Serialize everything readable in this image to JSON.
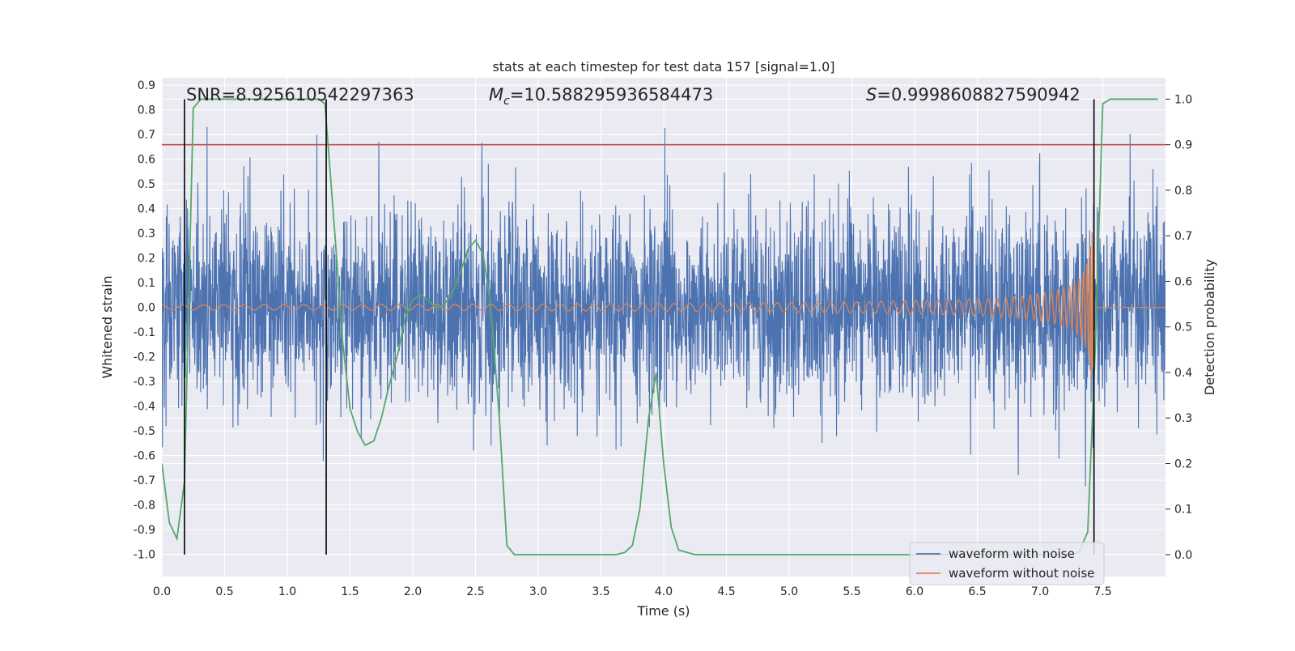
{
  "chart_data": {
    "type": "line",
    "title": "stats at each timestep for test data 157 [signal=1.0]",
    "xlabel": "Time (s)",
    "ylabel": "Whitened strain",
    "y2label": "Detection probability",
    "xlim": [
      0.0,
      8.0
    ],
    "ylim": [
      -1.09,
      0.93
    ],
    "y2lim": [
      -0.048,
      1.047
    ],
    "xticks": [
      "0.0",
      "0.5",
      "1.0",
      "1.5",
      "2.0",
      "2.5",
      "3.0",
      "3.5",
      "4.0",
      "4.5",
      "5.0",
      "5.5",
      "6.0",
      "6.5",
      "7.0",
      "7.5"
    ],
    "yticks": [
      "0.9",
      "0.8",
      "0.7",
      "0.6",
      "0.5",
      "0.4",
      "0.3",
      "0.2",
      "0.1",
      "0.0",
      "-0.1",
      "-0.2",
      "-0.3",
      "-0.4",
      "-0.5",
      "-0.6",
      "-0.7",
      "-0.8",
      "-0.9",
      "-1.0"
    ],
    "y2ticks": [
      "1.0",
      "0.9",
      "0.8",
      "0.7",
      "0.6",
      "0.5",
      "0.4",
      "0.3",
      "0.2",
      "0.1",
      "0.0"
    ],
    "legend_position": "lower-right",
    "annotations": {
      "snr": "SNR=8.925610542297363",
      "mc_symbol": "M",
      "mc_sub": "c",
      "mc_value": "=10.588295936584473",
      "s_symbol": "S",
      "s_value": "=0.9998608827590942"
    },
    "threshold": {
      "axis": "right",
      "value": 0.9,
      "color": "#c44e52"
    },
    "event_markers_x": [
      0.18,
      1.31,
      7.43
    ],
    "series": [
      {
        "name": "waveform with noise",
        "color": "#4c72b0",
        "axis": "left",
        "kind": "noise",
        "std": 0.2,
        "duration_s": 8.0
      },
      {
        "name": "waveform without noise",
        "color": "#dd8452",
        "axis": "left",
        "kind": "chirp",
        "start_amplitude": 0.01,
        "peak_amplitude": 0.2,
        "end_amplitude": 0.32,
        "merger_time_s": 7.43
      },
      {
        "name": "detection probability",
        "color": "#55a868",
        "axis": "right",
        "x": [
          0.0,
          0.06,
          0.12,
          0.18,
          0.25,
          0.31,
          0.5,
          0.75,
          1.0,
          1.25,
          1.3,
          1.38,
          1.44,
          1.5,
          1.56,
          1.62,
          1.69,
          1.75,
          1.81,
          1.88,
          1.94,
          2.0,
          2.06,
          2.12,
          2.19,
          2.25,
          2.31,
          2.38,
          2.44,
          2.5,
          2.56,
          2.62,
          2.69,
          2.75,
          2.81,
          2.88,
          2.94,
          3.0,
          3.25,
          3.5,
          3.62,
          3.69,
          3.75,
          3.81,
          3.88,
          3.94,
          4.0,
          4.06,
          4.12,
          4.25,
          4.5,
          5.0,
          5.5,
          6.0,
          6.5,
          7.0,
          7.25,
          7.31,
          7.38,
          7.44,
          7.5,
          7.56,
          7.62,
          7.69,
          7.75,
          7.94
        ],
        "values": [
          0.2,
          0.07,
          0.035,
          0.16,
          0.98,
          1.0,
          1.0,
          1.0,
          1.0,
          1.0,
          0.99,
          0.7,
          0.47,
          0.32,
          0.27,
          0.24,
          0.25,
          0.3,
          0.37,
          0.44,
          0.52,
          0.56,
          0.57,
          0.56,
          0.54,
          0.55,
          0.57,
          0.62,
          0.67,
          0.69,
          0.66,
          0.55,
          0.3,
          0.02,
          0.0,
          0.0,
          0.0,
          0.0,
          0.0,
          0.0,
          0.0,
          0.005,
          0.02,
          0.1,
          0.3,
          0.4,
          0.2,
          0.06,
          0.01,
          0.0,
          0.0,
          0.0,
          0.0,
          0.0,
          0.0,
          0.0,
          0.0,
          0.005,
          0.05,
          0.45,
          0.99,
          1.0,
          1.0,
          1.0,
          1.0,
          1.0
        ]
      }
    ]
  }
}
